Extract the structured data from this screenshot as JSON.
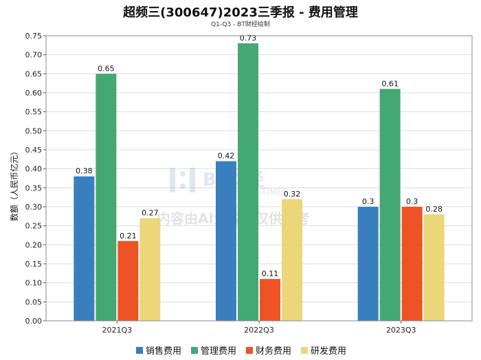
{
  "header": {
    "title": "超频三(300647)2023三季报 - 费用管理",
    "subtitle": "Q1-Q3 - BT财经绘制"
  },
  "watermark": {
    "brand": "BT财经",
    "brand_en": "BUSINESSTIMES",
    "notice": "内容由AI生成，仅供参考"
  },
  "chart_data": {
    "type": "bar",
    "title": "超频三(300647)2023三季报 - 费用管理",
    "subtitle": "Q1-Q3 - BT财经绘制",
    "xlabel": "",
    "ylabel": "数额（人民币亿元）",
    "ylim": [
      0,
      0.75
    ],
    "yticks": [
      "0.00",
      "0.05",
      "0.10",
      "0.15",
      "0.20",
      "0.25",
      "0.30",
      "0.35",
      "0.40",
      "0.45",
      "0.50",
      "0.55",
      "0.60",
      "0.65",
      "0.70",
      "0.75"
    ],
    "categories": [
      "2021Q3",
      "2022Q3",
      "2023Q3"
    ],
    "grid": true,
    "legend_position": "bottom-center",
    "series": [
      {
        "name": "销售费用",
        "color": "#3a7fbd",
        "values": [
          0.38,
          0.42,
          0.3
        ],
        "labels": [
          "0.38",
          "0.42",
          "0.3"
        ]
      },
      {
        "name": "管理费用",
        "color": "#44a873",
        "values": [
          0.65,
          0.73,
          0.61
        ],
        "labels": [
          "0.65",
          "0.73",
          "0.61"
        ]
      },
      {
        "name": "财务费用",
        "color": "#ee5325",
        "values": [
          0.21,
          0.11,
          0.3
        ],
        "labels": [
          "0.21",
          "0.11",
          "0.3"
        ]
      },
      {
        "name": "研发费用",
        "color": "#ecd67a",
        "values": [
          0.27,
          0.32,
          0.28
        ],
        "labels": [
          "0.27",
          "0.32",
          "0.28"
        ]
      }
    ]
  }
}
